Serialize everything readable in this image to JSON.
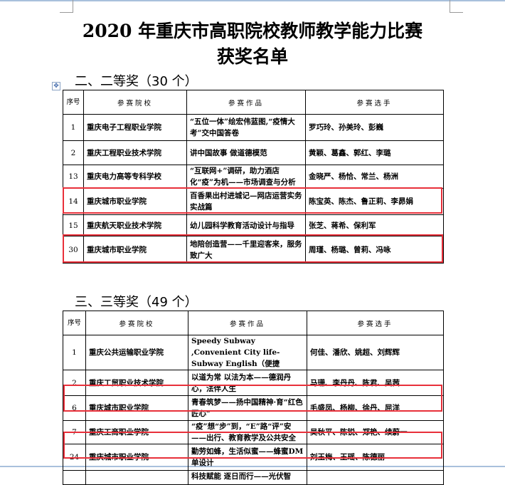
{
  "document": {
    "title_line1": "2020 年重庆市高职院校教师教学能力比赛",
    "title_line2": "获奖名单"
  },
  "headers": [
    "序号",
    "参赛院校",
    "参赛作品",
    "参赛选手"
  ],
  "sections": [
    {
      "heading": "二、二等奖（30 个）",
      "rows": [
        {
          "no": "1",
          "school": "重庆电子工程职业学院",
          "work": "“五位一体”绘宏伟蓝图,“疫情大考”交中国答卷",
          "members": "罗巧玲、孙美玲、彭巍",
          "highlighted": false
        },
        {
          "no": "2",
          "school": "重庆工程职业技术学院",
          "work": "讲中国故事 做道德模范",
          "members": "黄颖、葛鑫、郭红、李璐",
          "highlighted": false
        },
        {
          "no": "13",
          "school": "重庆电力高等专科学校",
          "work": "“互联网+”调研，助力酒店化“疫”为机——市场调查与分析",
          "members": "金晓严、杨恰、常兰、杨洲",
          "highlighted": false
        },
        {
          "no": "14",
          "school": "重庆城市职业学院",
          "work": "百香果出村进城记—网店运营实务实战篇",
          "members": "陈宝英、陈杰、鲁正莉、李昴娟",
          "highlighted": true
        },
        {
          "no": "15",
          "school": "重庆航天职业技术学院",
          "work": "幼儿园科学教育活动设计与指导",
          "members": "张芝、蒋希、保利军",
          "highlighted": false
        },
        {
          "no": "30",
          "school": "重庆城市职业学院",
          "work": "地陪创造营——千里迎客来，服务致广大",
          "members": "周瑾、杨璐、曾莉、冯咏",
          "highlighted": true
        }
      ]
    },
    {
      "heading": "三、三等奖（49 个）",
      "rows": [
        {
          "no": "1",
          "school": "重庆公共运输职业学院",
          "work": "Speedy Subway ,Convenient City life-Subway English（便捷",
          "members": "何佳、潘欣、姚超、刘辉辉",
          "highlighted": false
        },
        {
          "no": "2",
          "school": "重庆工贸职业技术学院",
          "work": "以道为常 以法为本——德润丹心，法伴人生",
          "members": "马珊、李丹丹、陈君、吴茜",
          "highlighted": false
        },
        {
          "no": "6",
          "school": "重庆城市职业学院",
          "work": "青春筑梦——扬中国精神·育“红色匠心”",
          "members": "毛盛凤、杨柳、徐丹、屈洋",
          "highlighted": true
        },
        {
          "no": "7",
          "school": "重庆工商职业学院",
          "work": "“疫”想“步”到，“E”路“评”安——出行、教育教学及公共安全",
          "members": "吴秋平、陈锐、郑艳、续蔚一",
          "highlighted": false
        },
        {
          "no": "24",
          "school": "重庆城市职业学院",
          "work": "勤劳如蜂，生活似蜜——蜂蜜DM单设计",
          "members": "刘玉梅、王瑶、陈德丽",
          "highlighted": true
        },
        {
          "no": "",
          "school": "",
          "work": "科技赋能 逐日而行——光伏智",
          "members": "",
          "highlighted": false
        }
      ]
    }
  ],
  "colors": {
    "highlight": "#e8303a",
    "window_edge": "#a9c0dc"
  },
  "icons": {
    "table_move_handle": "move-cross-icon"
  }
}
